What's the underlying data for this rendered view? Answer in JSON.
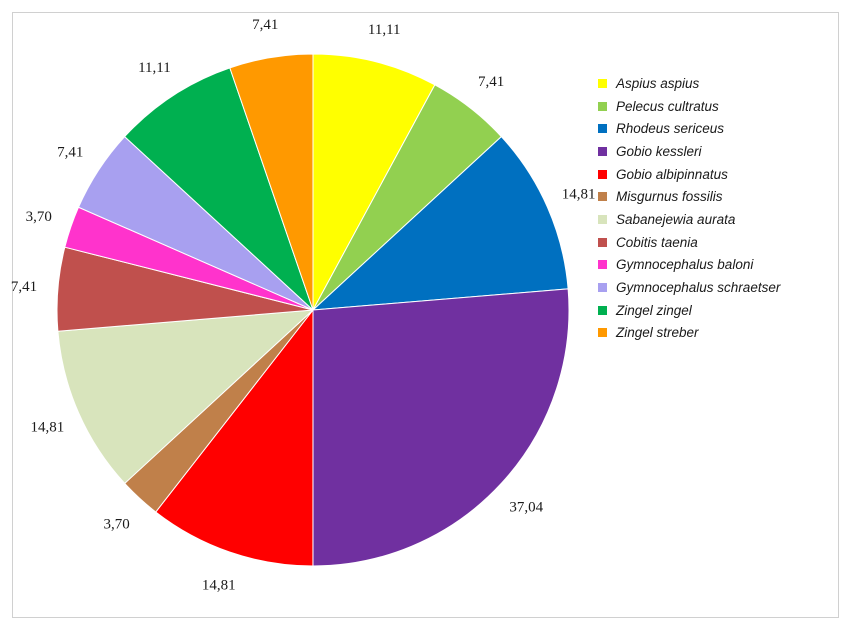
{
  "chart_data": {
    "type": "pie",
    "title": "",
    "legend_position": "right",
    "slices": [
      {
        "label": "Aspius aspius",
        "value": 11.11,
        "value_label": "11,11",
        "color": "#ffff00"
      },
      {
        "label": "Pelecus cultratus",
        "value": 7.41,
        "value_label": "7,41",
        "color": "#92d050"
      },
      {
        "label": "Rhodeus sericeus",
        "value": 14.81,
        "value_label": "14,81",
        "color": "#0070c0"
      },
      {
        "label": "Gobio kessleri",
        "value": 37.04,
        "value_label": "37,04",
        "color": "#7030a0"
      },
      {
        "label": "Gobio albipinnatus",
        "value": 14.81,
        "value_label": "14,81",
        "color": "#ff0000"
      },
      {
        "label": "Misgurnus fossilis",
        "value": 3.7,
        "value_label": "3,70",
        "color": "#c0804a"
      },
      {
        "label": "Sabanejewia aurata",
        "value": 14.81,
        "value_label": "14,81",
        "color": "#d8e4bc"
      },
      {
        "label": "Cobitis taenia",
        "value": 7.41,
        "value_label": "7,41",
        "color": "#c0504d"
      },
      {
        "label": "Gymnocephalus baloni",
        "value": 3.7,
        "value_label": "3,70",
        "color": "#ff33cc"
      },
      {
        "label": "Gymnocephalus schraetser",
        "value": 7.41,
        "value_label": "7,41",
        "color": "#a8a0f0"
      },
      {
        "label": "Zingel zingel",
        "value": 11.11,
        "value_label": "11,11",
        "color": "#00b050"
      },
      {
        "label": "Zingel streber",
        "value": 7.41,
        "value_label": "7,41",
        "color": "#ff9900"
      }
    ]
  }
}
